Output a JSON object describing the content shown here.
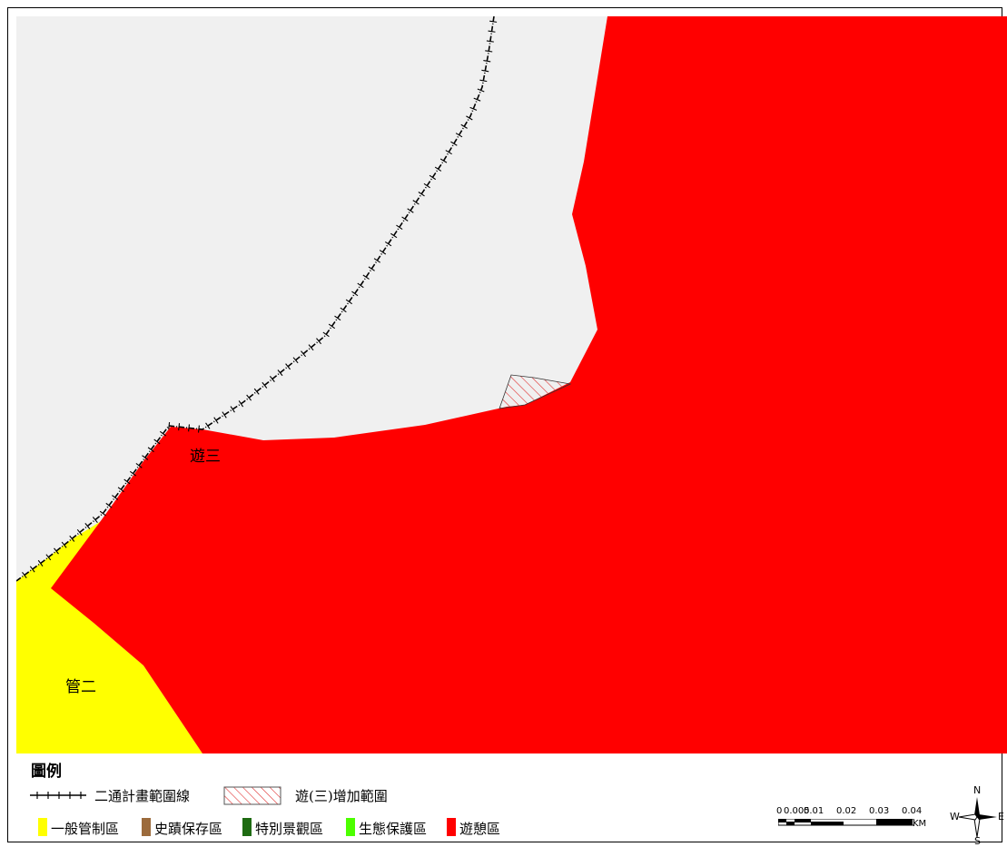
{
  "map": {
    "zone_labels": {
      "recreation_3": "遊三",
      "control_2": "管二"
    }
  },
  "legend": {
    "title": "圖例",
    "boundary_line": "二通計畫範圍線",
    "expansion_area": "遊(三)增加範圍",
    "categories": [
      {
        "label": "一般管制區",
        "color": "#FFFF00"
      },
      {
        "label": "史蹟保存區",
        "color": "#9C6B3C"
      },
      {
        "label": "特別景觀區",
        "color": "#1E6B12"
      },
      {
        "label": "生態保護區",
        "color": "#4CFF00"
      },
      {
        "label": "遊憩區",
        "color": "#FF0000"
      }
    ]
  },
  "scale": {
    "labels": [
      "0",
      "0.005",
      "0.01",
      "0.02",
      "0.03",
      "0.04"
    ],
    "unit": "KM"
  },
  "compass": {
    "n": "N",
    "s": "S",
    "e": "E",
    "w": "W"
  },
  "colors": {
    "recreation": "#FF0000",
    "general_control": "#FFFF00",
    "background": "#F0F0F0"
  }
}
